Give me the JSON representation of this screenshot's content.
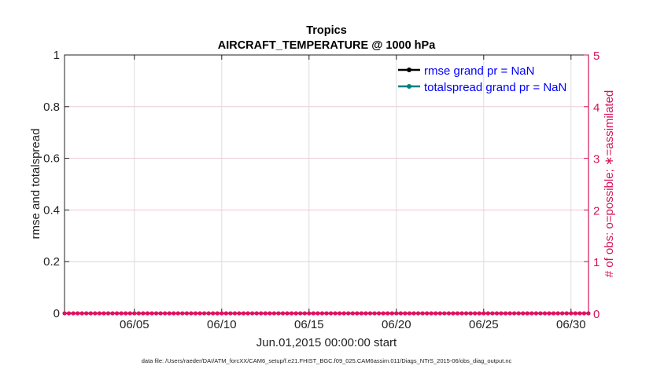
{
  "chart_data": {
    "type": "line",
    "title": "Tropics",
    "subtitle": "AIRCRAFT_TEMPERATURE @ 1000 hPa",
    "xlabel": "Jun.01,2015 00:00:00 start",
    "ylabel": "rmse and totalspread",
    "ylabel_right": "# of obs: o=possible; ∗=assimilated",
    "x_range_days": [
      0,
      30
    ],
    "x_ticks": [
      {
        "day": 4,
        "label": "06/05"
      },
      {
        "day": 9,
        "label": "06/10"
      },
      {
        "day": 14,
        "label": "06/15"
      },
      {
        "day": 19,
        "label": "06/20"
      },
      {
        "day": 24,
        "label": "06/25"
      },
      {
        "day": 29,
        "label": "06/30"
      }
    ],
    "ylim": [
      0,
      1
    ],
    "y_ticks": [
      "0",
      "0.2",
      "0.4",
      "0.6",
      "0.8",
      "1"
    ],
    "ylim_right": [
      0,
      5
    ],
    "y_ticks_right": [
      "0",
      "1",
      "2",
      "3",
      "4",
      "5"
    ],
    "grid": true,
    "legend_placement": "top-right",
    "series": [
      {
        "name": "rmse grand pr = NaN",
        "color": "#000000",
        "values": []
      },
      {
        "name": "totalspread grand pr = NaN",
        "color": "#008080",
        "values": []
      },
      {
        "name": "obs count",
        "color": "#e0115f",
        "axis": "right",
        "constant_value": 0,
        "interval_hours": 6
      }
    ],
    "legend_text_color": "#0000ff",
    "right_axis_color": "#d4145a"
  },
  "footer": "data file: /Users/raeder/DAI/ATM_forcXX/CAM6_setup/f.e21.FHIST_BGC.f09_025.CAM6assim.011/Diags_NTrS_2015-06/obs_diag_output.nc"
}
